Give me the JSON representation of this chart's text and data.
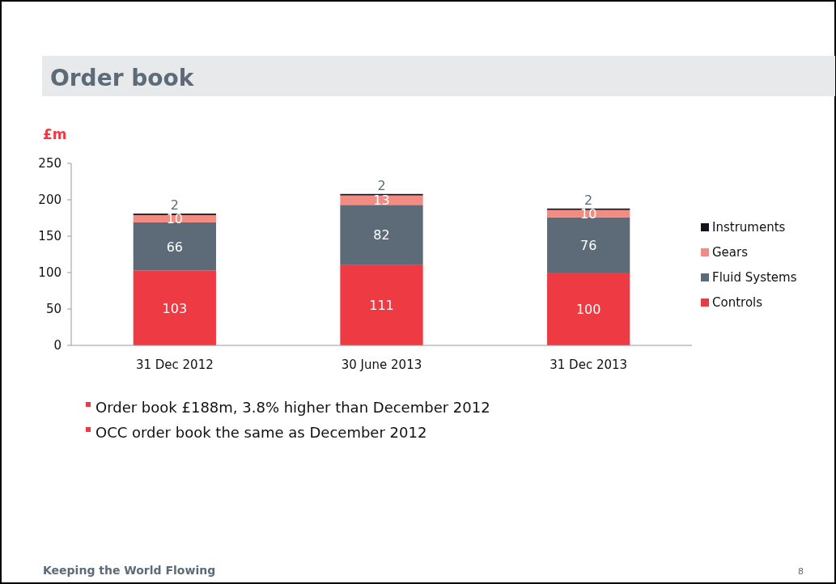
{
  "chart_data": {
    "type": "bar",
    "stacked": true,
    "title": "Order book",
    "ylabel": "£m",
    "categories": [
      "31 Dec 2012",
      "30 June 2013",
      "31 Dec 2013"
    ],
    "series": [
      {
        "name": "Controls",
        "color": "#ee3a43",
        "values": [
          103,
          111,
          100
        ]
      },
      {
        "name": "Fluid Systems",
        "color": "#5c6b77",
        "values": [
          66,
          82,
          76
        ]
      },
      {
        "name": "Gears",
        "color": "#f28b82",
        "values": [
          10,
          13,
          10
        ]
      },
      {
        "name": "Instruments",
        "color": "#111418",
        "values": [
          2,
          2,
          2
        ]
      }
    ],
    "ylim": [
      0,
      250
    ],
    "yticks": [
      0,
      50,
      100,
      150,
      200,
      250
    ],
    "data_labels": true,
    "legend": "right",
    "grid": false,
    "annotations": [
      "Order book £188m, 3.8% higher than December 2012",
      "OCC order book the same as December 2012",
      "Keeping the World Flowing",
      "8"
    ]
  }
}
